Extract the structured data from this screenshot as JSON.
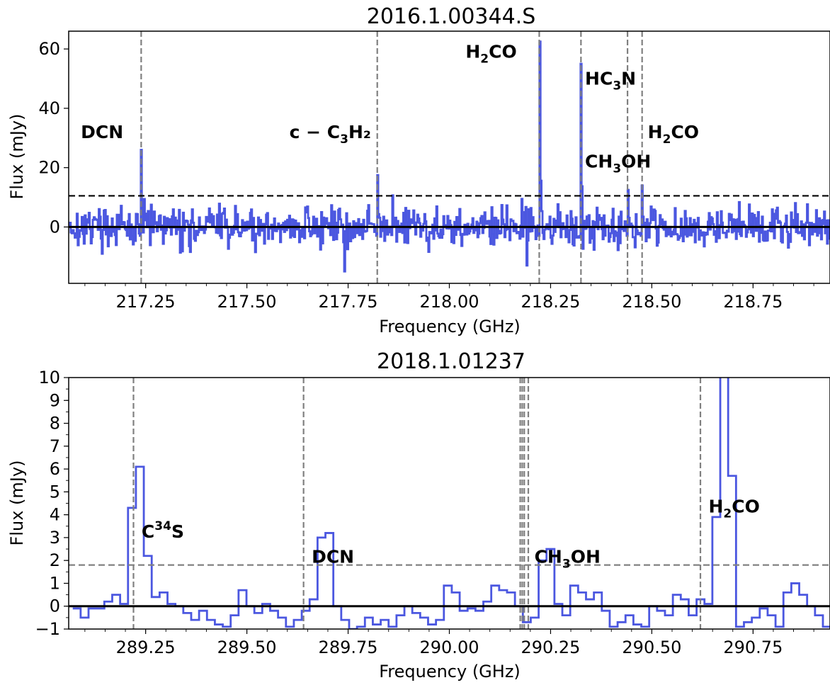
{
  "chart_data": [
    {
      "type": "line",
      "title": "2016.1.00344.S",
      "xlabel": "Frequency (GHz)",
      "ylabel": "Flux (mJy)",
      "xlim": [
        217.06,
        218.94
      ],
      "ylim": [
        -19,
        66
      ],
      "xticks": [
        217.25,
        217.5,
        217.75,
        218.0,
        218.25,
        218.5,
        218.75
      ],
      "xtick_labels": [
        "217.25",
        "217.50",
        "217.75",
        "218.00",
        "218.25",
        "218.50",
        "218.75"
      ],
      "yticks": [
        0,
        20,
        40,
        60
      ],
      "ytick_labels": [
        "0",
        "20",
        "40",
        "60"
      ],
      "series_color": "#4b57e0",
      "noise_amplitude": 3.0,
      "noise_seed": 17,
      "noise_threshold": 10.5,
      "lines": [
        {
          "freq": 217.239,
          "peak": 26.0
        },
        {
          "freq": 217.822,
          "peak": 17.5
        },
        {
          "freq": 218.222,
          "peak": 62.5
        },
        {
          "freq": 218.325,
          "peak": 55.0
        },
        {
          "freq": 218.44,
          "peak": 12.5
        },
        {
          "freq": 218.476,
          "peak": 14.0
        }
      ],
      "dips": [
        {
          "freq": 217.74,
          "value": -15.0
        },
        {
          "freq": 218.19,
          "value": -13.0
        },
        {
          "freq": 217.52,
          "value": -8.5
        }
      ],
      "labels": [
        {
          "text": "DCN",
          "sub": "",
          "sup": "",
          "tail": "",
          "x": 217.09,
          "y": 30
        },
        {
          "text": "c − C",
          "sub": "3",
          "sup": "",
          "tail": "H₂",
          "x": 217.605,
          "y": 30
        },
        {
          "text": "H",
          "sub": "2",
          "sup": "",
          "tail": "CO",
          "x": 218.04,
          "y": 57
        },
        {
          "text": "HC",
          "sub": "3",
          "sup": "",
          "tail": "N",
          "x": 218.335,
          "y": 48
        },
        {
          "text": "CH",
          "sub": "3",
          "sup": "",
          "tail": "OH",
          "x": 218.335,
          "y": 20
        },
        {
          "text": "H",
          "sub": "2",
          "sup": "",
          "tail": "CO",
          "x": 218.49,
          "y": 30
        }
      ]
    },
    {
      "type": "line",
      "title": "2018.1.01237",
      "xlabel": "Frequency (GHz)",
      "ylabel": "Flux (mJy)",
      "xlim": [
        289.06,
        290.94
      ],
      "ylim": [
        -1,
        10
      ],
      "xticks": [
        289.25,
        289.5,
        289.75,
        290.0,
        290.25,
        290.5,
        290.75
      ],
      "xtick_labels": [
        "289.25",
        "289.50",
        "289.75",
        "290.00",
        "290.25",
        "290.50",
        "290.75"
      ],
      "yticks": [
        -1,
        0,
        1,
        2,
        3,
        4,
        5,
        6,
        7,
        8,
        9,
        10
      ],
      "ytick_labels": [
        "−1",
        "0",
        "1",
        "2",
        "3",
        "4",
        "5",
        "6",
        "7",
        "8",
        "9",
        "10"
      ],
      "series_color": "#4b57e0",
      "noise_threshold": 1.8,
      "step_width": 0.0195,
      "step_start": 289.07,
      "steps": [
        -0.1,
        -0.5,
        -0.1,
        -0.1,
        0.2,
        0.5,
        0.1,
        4.3,
        6.1,
        2.2,
        0.4,
        0.6,
        0.1,
        0.0,
        -0.3,
        -0.6,
        -0.2,
        -0.6,
        -0.8,
        -0.9,
        -0.4,
        0.7,
        0.0,
        -0.3,
        0.1,
        -0.2,
        -0.5,
        -0.9,
        -0.6,
        -0.2,
        0.3,
        3.0,
        3.2,
        0.0,
        -0.6,
        -1.0,
        -0.9,
        -0.5,
        -0.8,
        -0.6,
        -0.9,
        -0.4,
        0.0,
        -0.3,
        -0.5,
        -0.8,
        -0.6,
        0.9,
        0.6,
        -0.2,
        -0.1,
        -0.2,
        0.2,
        0.9,
        0.7,
        0.6,
        0.0,
        -0.7,
        -0.5,
        2.0,
        2.5,
        0.1,
        -0.4,
        0.9,
        0.6,
        0.3,
        0.6,
        -0.2,
        -0.9,
        -0.7,
        -0.4,
        -0.8,
        -0.9,
        0.0,
        -0.2,
        -0.4,
        0.5,
        0.3,
        -0.4,
        0.3,
        0.1,
        3.9,
        12.0,
        5.7,
        -0.9,
        -0.7,
        -0.5,
        -0.1,
        -0.4,
        -0.9,
        0.6,
        1.0,
        0.5,
        0.0,
        -0.4,
        -0.9,
        -0.5
      ],
      "vlines": [
        289.22,
        289.64,
        290.175,
        290.18,
        290.185,
        290.195,
        290.62
      ],
      "labels": [
        {
          "text": "C",
          "sub": "",
          "sup": "34",
          "tail": "S",
          "x": 289.24,
          "y": 3.0
        },
        {
          "text": "DCN",
          "sub": "",
          "sup": "",
          "tail": "",
          "x": 289.66,
          "y": 1.9
        },
        {
          "text": "CH",
          "sub": "3",
          "sup": "",
          "tail": "OH",
          "x": 290.21,
          "y": 1.9
        },
        {
          "text": "H",
          "sub": "2",
          "sup": "",
          "tail": "CO",
          "x": 290.64,
          "y": 4.1
        }
      ]
    }
  ]
}
